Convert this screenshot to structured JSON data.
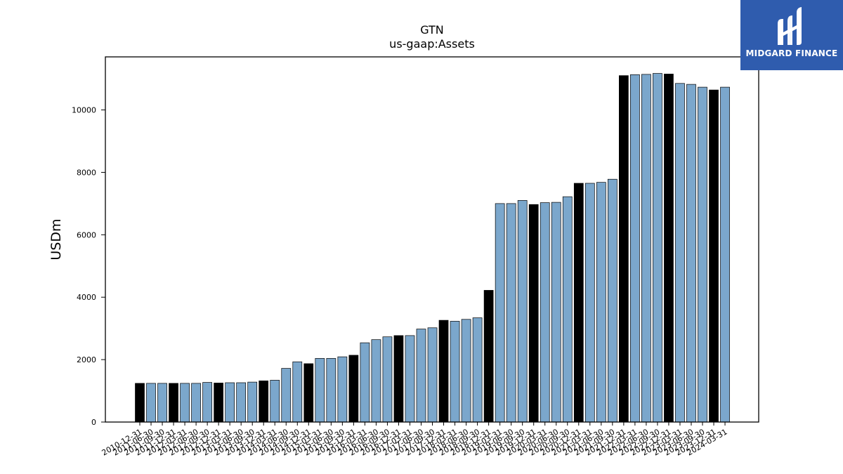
{
  "brand": {
    "name": "MIDGARD FINANCE"
  },
  "chart_data": {
    "type": "bar",
    "title": "GTN",
    "subtitle": "us-gaap:Assets",
    "xlabel": "",
    "ylabel": "USDm",
    "ylim": [
      0,
      11700
    ],
    "yticks": [
      0,
      2000,
      4000,
      6000,
      8000,
      10000
    ],
    "grid": false,
    "colors": {
      "annual": "#000000",
      "quarterly": "#7ba7cc"
    },
    "categories": [
      "2010-12-31",
      "2011-06-30",
      "2011-09-30",
      "2011-12-31",
      "2012-03-31",
      "2012-06-30",
      "2012-09-30",
      "2012-12-31",
      "2013-03-31",
      "2013-06-30",
      "2013-09-30",
      "2013-12-31",
      "2014-03-31",
      "2014-06-30",
      "2014-09-30",
      "2014-12-31",
      "2015-03-31",
      "2015-06-30",
      "2015-09-30",
      "2015-12-31",
      "2016-03-31",
      "2016-06-30",
      "2016-09-30",
      "2016-12-31",
      "2017-03-31",
      "2017-06-30",
      "2017-09-30",
      "2017-12-31",
      "2018-03-31",
      "2018-06-30",
      "2018-09-30",
      "2018-12-31",
      "2019-03-31",
      "2019-06-30",
      "2019-09-30",
      "2019-12-31",
      "2020-03-31",
      "2020-06-30",
      "2020-09-30",
      "2020-12-31",
      "2021-03-31",
      "2021-06-30",
      "2021-09-30",
      "2021-12-31",
      "2022-03-31",
      "2022-06-30",
      "2022-09-30",
      "2022-12-31",
      "2023-03-31",
      "2023-06-30",
      "2023-09-30",
      "2023-12-31",
      "2024-03-31"
    ],
    "values": [
      1240,
      1240,
      1240,
      1240,
      1240,
      1240,
      1270,
      1250,
      1260,
      1260,
      1280,
      1320,
      1340,
      1720,
      1930,
      1870,
      2040,
      2040,
      2090,
      2140,
      2540,
      2640,
      2730,
      2770,
      2770,
      2980,
      3020,
      3260,
      3230,
      3290,
      3340,
      4220,
      7000,
      7000,
      7100,
      6970,
      7030,
      7040,
      7220,
      7650,
      7650,
      7680,
      7780,
      11100,
      11130,
      11140,
      11170,
      11150,
      10850,
      10820,
      10730,
      10640,
      10730
    ],
    "is_annual": [
      1,
      0,
      0,
      1,
      0,
      0,
      0,
      1,
      0,
      0,
      0,
      1,
      0,
      0,
      0,
      1,
      0,
      0,
      0,
      1,
      0,
      0,
      0,
      1,
      0,
      0,
      0,
      1,
      0,
      0,
      0,
      1,
      0,
      0,
      0,
      1,
      0,
      0,
      0,
      1,
      0,
      0,
      0,
      1,
      0,
      0,
      0,
      1,
      0,
      0,
      0,
      1,
      0
    ]
  }
}
